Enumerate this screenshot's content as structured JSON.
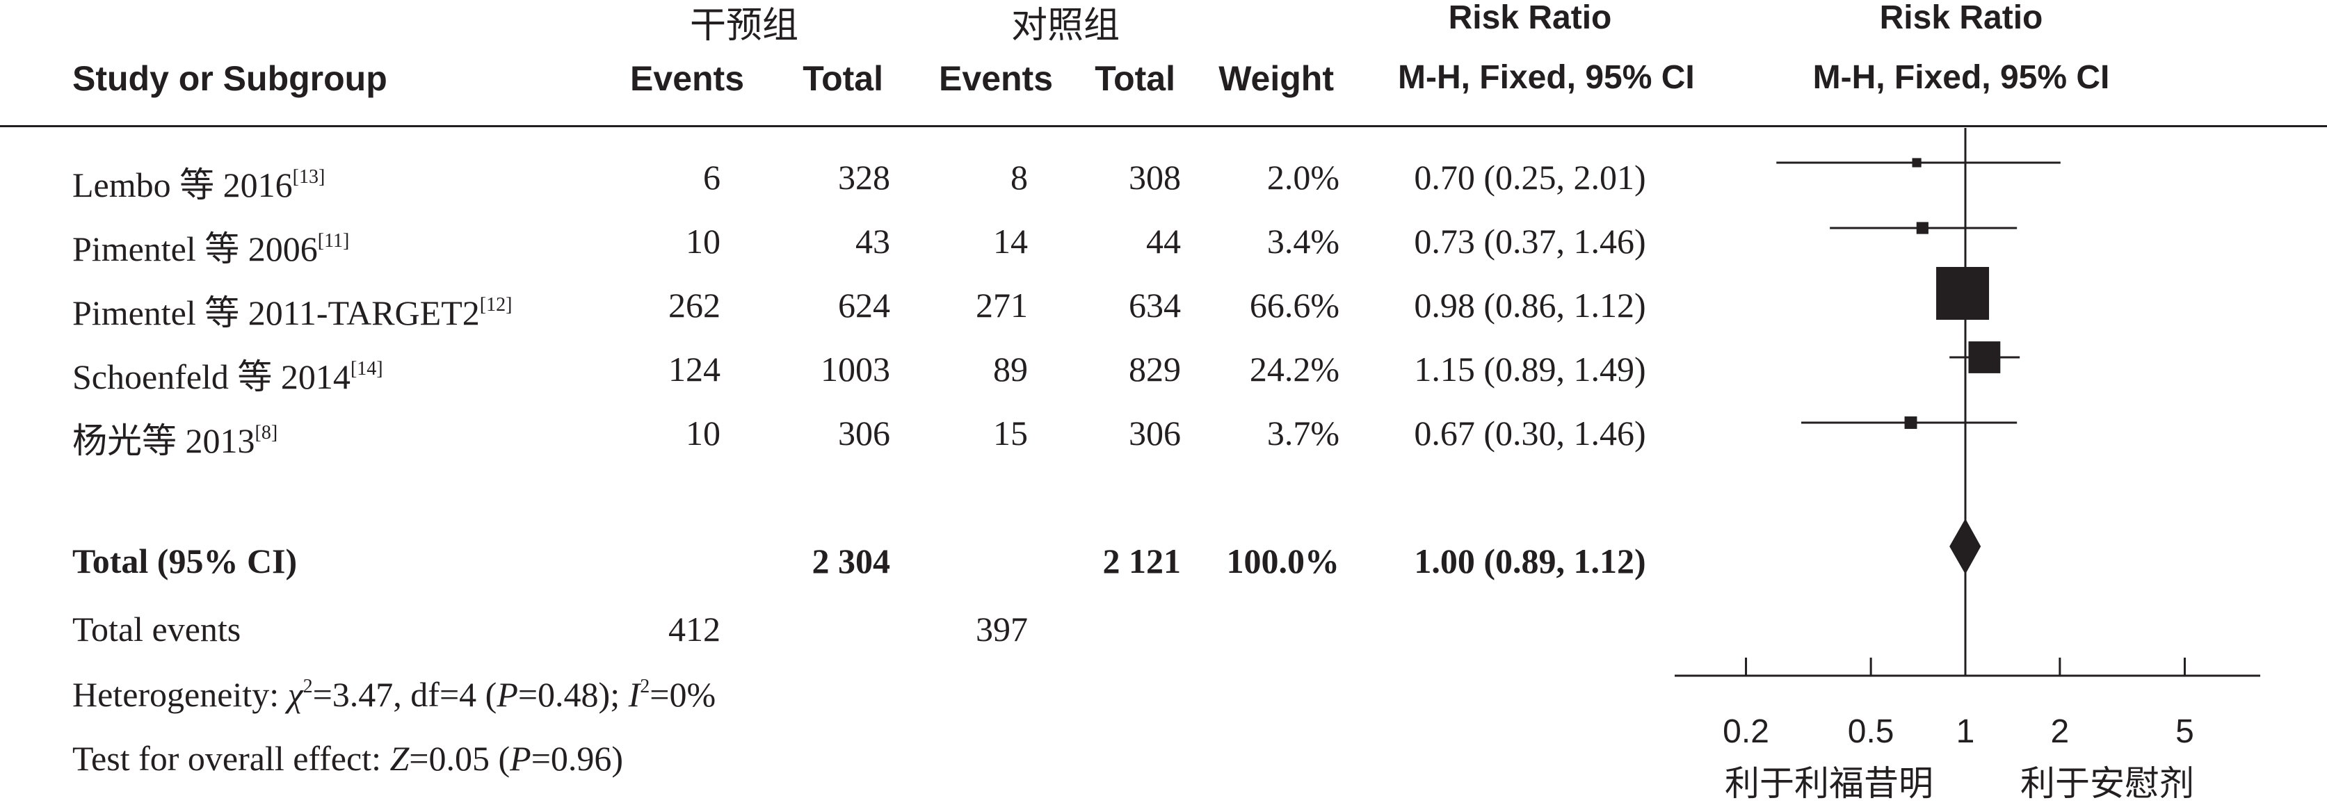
{
  "header": {
    "group_intervention": "干预组",
    "group_control": "对照组",
    "study_col": "Study or Subgroup",
    "events_col": "Events",
    "total_col": "Total",
    "weight_col": "Weight",
    "rr_title": "Risk Ratio",
    "rr_method": "M-H, Fixed, 95% CI",
    "plot_title": "Risk Ratio",
    "plot_method": "M-H, Fixed, 95% CI"
  },
  "studies": [
    {
      "name": "Lembo 等 2016",
      "ref": "[13]",
      "e1": "6",
      "t1": "328",
      "e2": "8",
      "t2": "308",
      "weight": "2.0%",
      "rr_text": "0.70 (0.25, 2.01)"
    },
    {
      "name": "Pimentel 等 2006",
      "ref": "[11]",
      "e1": "10",
      "t1": "43",
      "e2": "14",
      "t2": "44",
      "weight": "3.4%",
      "rr_text": "0.73 (0.37, 1.46)"
    },
    {
      "name": "Pimentel 等 2011-TARGET2",
      "ref": "[12]",
      "e1": "262",
      "t1": "624",
      "e2": "271",
      "t2": "634",
      "weight": "66.6%",
      "rr_text": "0.98 (0.86, 1.12)"
    },
    {
      "name": "Schoenfeld 等 2014",
      "ref": "[14]",
      "e1": "124",
      "t1": "1003",
      "e2": "89",
      "t2": "829",
      "weight": "24.2%",
      "rr_text": "1.15 (0.89, 1.49)"
    },
    {
      "name": "杨光等 2013",
      "ref": "[8]",
      "e1": "10",
      "t1": "306",
      "e2": "15",
      "t2": "306",
      "weight": "3.7%",
      "rr_text": "0.67 (0.30, 1.46)"
    }
  ],
  "total": {
    "label": "Total (95% CI)",
    "t1": "2 304",
    "t2": "2 121",
    "weight": "100.0%",
    "rr_text": "1.00 (0.89, 1.12)"
  },
  "events": {
    "label": "Total events",
    "e1": "412",
    "e2": "397"
  },
  "heterogeneity": {
    "prefix": "Heterogeneity: ",
    "chi": "χ",
    "chi_sup": "2",
    "chi_rest": "=3.47, df=4 (",
    "p": "P",
    "p_rest": "=0.48); ",
    "i": "I",
    "i_sup": "2",
    "i_rest": "=0%"
  },
  "overall": {
    "prefix": "Test for overall effect: ",
    "z": "Z",
    "z_rest": "=0.05 (",
    "p": "P",
    "p_rest": "=0.96)"
  },
  "axis": {
    "favours_left": "利于利福昔明",
    "favours_right": "利于安慰剂"
  },
  "chart_data": {
    "type": "scatter",
    "subtype": "forest-plot",
    "title": "Risk Ratio",
    "subtitle": "M-H, Fixed, 95% CI",
    "x_scale": "log",
    "xlim": [
      0.15,
      7.5
    ],
    "ticks": [
      0.2,
      0.5,
      1,
      2,
      5
    ],
    "tick_labels": [
      "0.2",
      "0.5",
      "1",
      "2",
      "5"
    ],
    "reference_line": 1,
    "xlabel_left": "利于利福昔明",
    "xlabel_right": "利于安慰剂",
    "studies": [
      {
        "label": "Lembo 等 2016",
        "rr": 0.7,
        "lo": 0.25,
        "hi": 2.01,
        "weight": 2.0
      },
      {
        "label": "Pimentel 等 2006",
        "rr": 0.73,
        "lo": 0.37,
        "hi": 1.46,
        "weight": 3.4
      },
      {
        "label": "Pimentel 等 2011-TARGET2",
        "rr": 0.98,
        "lo": 0.86,
        "hi": 1.12,
        "weight": 66.6
      },
      {
        "label": "Schoenfeld 等 2014",
        "rr": 1.15,
        "lo": 0.89,
        "hi": 1.49,
        "weight": 24.2
      },
      {
        "label": "杨光等 2013",
        "rr": 0.67,
        "lo": 0.3,
        "hi": 1.46,
        "weight": 3.7
      }
    ],
    "pooled": {
      "label": "Total (95% CI)",
      "rr": 1.0,
      "lo": 0.89,
      "hi": 1.12
    }
  }
}
